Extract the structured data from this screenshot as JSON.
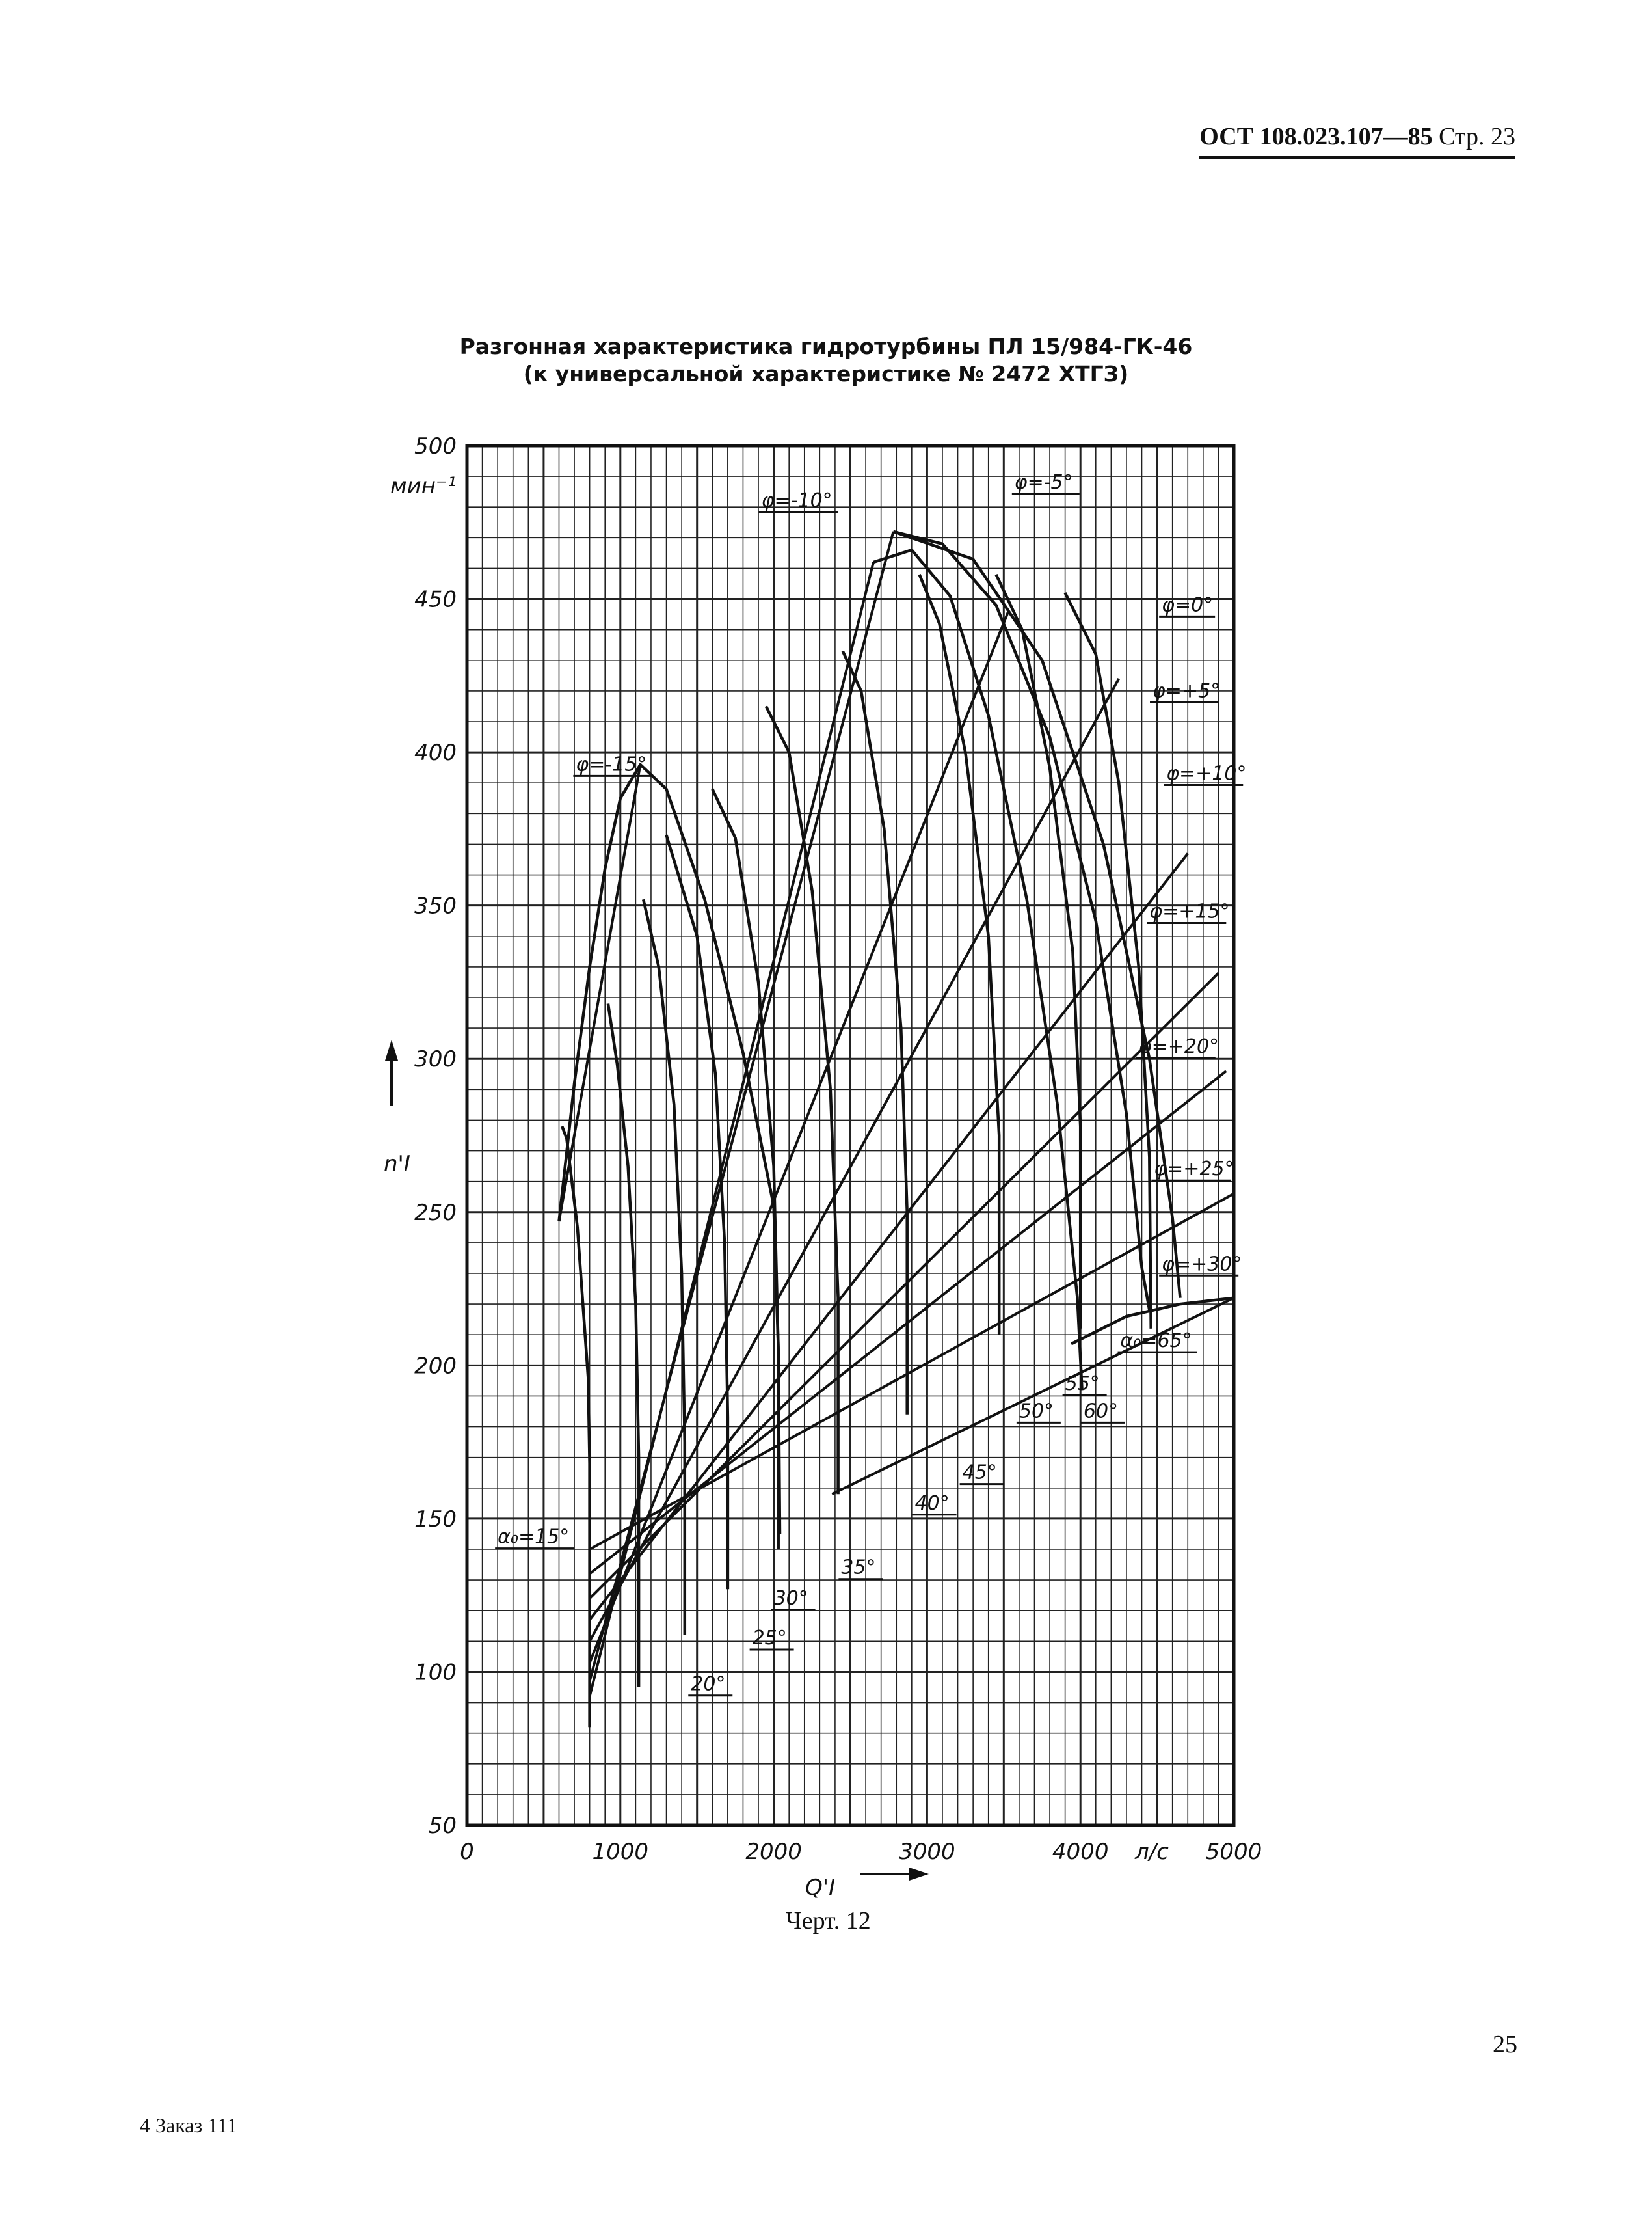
{
  "header": {
    "doc": "ОСТ 108.023.107—85",
    "page": "Стр. 23"
  },
  "title_line1": "Разгонная характеристика гидротурбины ПЛ 15/984-ГК-46",
  "title_line2": "(к универсальной характеристике № 2472 ХТГЗ)",
  "caption": "Черт. 12",
  "page_number": "25",
  "order_note": "4 Заказ 111",
  "chart_data": {
    "type": "line",
    "title": "Разгонная характеристика гидротурбины ПЛ 15/984-ГК-46",
    "subtitle": "(к универсальной характеристике № 2472 ХТГЗ)",
    "xlabel": "Q'I",
    "xunit": "л/с",
    "ylabel": "n'I",
    "yunit": "мин⁻¹",
    "xlim": [
      0,
      5000
    ],
    "ylim": [
      50,
      500
    ],
    "grid": true,
    "x_ticks": [
      {
        "v": 0,
        "label": "0"
      },
      {
        "v": 1000,
        "label": "1000"
      },
      {
        "v": 2000,
        "label": "2000"
      },
      {
        "v": 3000,
        "label": "3000"
      },
      {
        "v": 4000,
        "label": "4000"
      },
      {
        "v": 5000,
        "label": "5000"
      }
    ],
    "y_ticks": [
      {
        "v": 50,
        "label": "50"
      },
      {
        "v": 100,
        "label": "100"
      },
      {
        "v": 150,
        "label": "150"
      },
      {
        "v": 200,
        "label": "200"
      },
      {
        "v": 250,
        "label": "250"
      },
      {
        "v": 300,
        "label": "300"
      },
      {
        "v": 350,
        "label": "350"
      },
      {
        "v": 400,
        "label": "400"
      },
      {
        "v": 450,
        "label": "450"
      },
      {
        "v": 500,
        "label": "500"
      }
    ],
    "phi_series": [
      {
        "label": "φ=-15°",
        "points": [
          [
            600,
            247
          ],
          [
            700,
            292
          ],
          [
            800,
            330
          ],
          [
            900,
            362
          ],
          [
            1000,
            385
          ],
          [
            1130,
            396
          ],
          [
            1300,
            388
          ],
          [
            1550,
            352
          ],
          [
            1800,
            302
          ],
          [
            2000,
            252
          ],
          [
            2030,
            205
          ],
          [
            2040,
            145
          ]
        ]
      },
      {
        "label": "φ=-10°",
        "points": [
          [
            2650,
            462
          ],
          [
            2900,
            466
          ],
          [
            3150,
            451
          ],
          [
            3400,
            412
          ],
          [
            3650,
            352
          ],
          [
            3850,
            285
          ],
          [
            3980,
            222
          ],
          [
            4010,
            192
          ]
        ]
      },
      {
        "label": "φ=-5°",
        "points": [
          [
            2780,
            472
          ],
          [
            3100,
            468
          ],
          [
            3450,
            448
          ],
          [
            3800,
            405
          ],
          [
            4100,
            345
          ],
          [
            4300,
            282
          ],
          [
            4400,
            232
          ],
          [
            4450,
            218
          ]
        ]
      },
      {
        "label": "φ=0°",
        "points": [
          [
            2780,
            472
          ],
          [
            3300,
            463
          ],
          [
            3750,
            430
          ],
          [
            4150,
            370
          ],
          [
            4450,
            300
          ],
          [
            4600,
            248
          ],
          [
            4650,
            222
          ]
        ]
      }
    ],
    "alpha_series": [
      {
        "label": "α₀=15°",
        "points": [
          [
            800,
            82
          ],
          [
            800,
            168
          ],
          [
            790,
            196
          ],
          [
            720,
            245
          ],
          [
            650,
            274
          ],
          [
            620,
            278
          ]
        ]
      },
      {
        "label": "20°",
        "points": [
          [
            1120,
            95
          ],
          [
            1120,
            170
          ],
          [
            1100,
            220
          ],
          [
            1050,
            265
          ],
          [
            980,
            298
          ],
          [
            920,
            318
          ]
        ]
      },
      {
        "label": "25°",
        "points": [
          [
            1420,
            112
          ],
          [
            1420,
            175
          ],
          [
            1400,
            230
          ],
          [
            1350,
            285
          ],
          [
            1250,
            330
          ],
          [
            1150,
            352
          ]
        ]
      },
      {
        "label": "30°",
        "points": [
          [
            1700,
            127
          ],
          [
            1700,
            183
          ],
          [
            1680,
            240
          ],
          [
            1620,
            295
          ],
          [
            1500,
            340
          ],
          [
            1300,
            373
          ]
        ]
      },
      {
        "label": "35°",
        "points": [
          [
            2030,
            140
          ],
          [
            2030,
            205
          ],
          [
            2000,
            265
          ],
          [
            1900,
            325
          ],
          [
            1750,
            372
          ],
          [
            1600,
            388
          ]
        ]
      },
      {
        "label": "40°",
        "points": [
          [
            2420,
            158
          ],
          [
            2420,
            222
          ],
          [
            2370,
            290
          ],
          [
            2250,
            355
          ],
          [
            2100,
            400
          ],
          [
            1950,
            415
          ]
        ]
      },
      {
        "label": "45°",
        "points": [
          [
            2870,
            184
          ],
          [
            2870,
            250
          ],
          [
            2830,
            310
          ],
          [
            2720,
            375
          ],
          [
            2570,
            420
          ],
          [
            2450,
            433
          ]
        ]
      },
      {
        "label": "50°",
        "points": [
          [
            3470,
            210
          ],
          [
            3470,
            275
          ],
          [
            3400,
            340
          ],
          [
            3250,
            400
          ],
          [
            3080,
            442
          ],
          [
            2950,
            458
          ]
        ]
      },
      {
        "label": "55°",
        "points": [
          [
            4000,
            212
          ],
          [
            4000,
            278
          ],
          [
            3950,
            335
          ],
          [
            3800,
            395
          ],
          [
            3620,
            440
          ],
          [
            3450,
            458
          ]
        ]
      },
      {
        "label": "60°",
        "points": [
          [
            4460,
            212
          ],
          [
            4450,
            268
          ],
          [
            4380,
            330
          ],
          [
            4250,
            390
          ],
          [
            4100,
            432
          ],
          [
            3900,
            452
          ]
        ]
      },
      {
        "label": "α₀=65°",
        "points": [
          [
            3940,
            207
          ],
          [
            4300,
            216
          ],
          [
            4650,
            220
          ],
          [
            5000,
            222
          ]
        ]
      }
    ],
    "blade_lines": [
      {
        "label": "φ=-15°",
        "points": [
          [
            600,
            247
          ],
          [
            1130,
            396
          ]
        ]
      },
      {
        "label": "φ=-10°",
        "points": [
          [
            800,
            92
          ],
          [
            2650,
            462
          ]
        ]
      },
      {
        "label": "φ=-5°",
        "points": [
          [
            800,
            97
          ],
          [
            2780,
            472
          ]
        ]
      },
      {
        "label": "φ=0°",
        "points": [
          [
            800,
            103
          ],
          [
            3530,
            446
          ]
        ]
      },
      {
        "label": "φ=+5°",
        "points": [
          [
            800,
            110
          ],
          [
            4250,
            424
          ]
        ]
      },
      {
        "label": "φ=+10°",
        "points": [
          [
            800,
            117
          ],
          [
            4700,
            367
          ]
        ]
      },
      {
        "label": "φ=+15°",
        "points": [
          [
            800,
            124
          ],
          [
            4900,
            328
          ]
        ]
      },
      {
        "label": "φ=+20°",
        "points": [
          [
            800,
            132
          ],
          [
            4950,
            296
          ]
        ]
      },
      {
        "label": "φ=+25°",
        "points": [
          [
            800,
            140
          ],
          [
            5000,
            256
          ]
        ]
      },
      {
        "label": "φ=+30°",
        "points": [
          [
            2380,
            158
          ],
          [
            5000,
            222
          ]
        ]
      }
    ],
    "callouts": [
      {
        "label": "φ=-10°",
        "at": [
          1920,
          480
        ]
      },
      {
        "label": "φ=-5°",
        "at": [
          3570,
          486
        ]
      },
      {
        "label": "φ=0°",
        "at": [
          4530,
          446
        ]
      },
      {
        "label": "φ=+5°",
        "at": [
          4470,
          418
        ]
      },
      {
        "label": "φ=-15°",
        "at": [
          710,
          394
        ]
      },
      {
        "label": "φ=+10°",
        "at": [
          4560,
          391
        ]
      },
      {
        "label": "φ=+15°",
        "at": [
          4450,
          346
        ]
      },
      {
        "label": "φ=+20°",
        "at": [
          4380,
          302
        ]
      },
      {
        "label": "φ=+25°",
        "at": [
          4480,
          262
        ]
      },
      {
        "label": "φ=+30°",
        "at": [
          4530,
          231
        ]
      },
      {
        "label": "α₀=65°",
        "at": [
          4260,
          206
        ]
      },
      {
        "label": "55°",
        "at": [
          3900,
          192
        ]
      },
      {
        "label": "50°",
        "at": [
          3600,
          183
        ]
      },
      {
        "label": "60°",
        "at": [
          4020,
          183
        ]
      },
      {
        "label": "45°",
        "at": [
          3230,
          163
        ]
      },
      {
        "label": "40°",
        "at": [
          2920,
          153
        ]
      },
      {
        "label": "35°",
        "at": [
          2440,
          132
        ]
      },
      {
        "label": "30°",
        "at": [
          2000,
          122
        ]
      },
      {
        "label": "25°",
        "at": [
          1860,
          109
        ]
      },
      {
        "label": "20°",
        "at": [
          1460,
          94
        ]
      },
      {
        "label": "α₀=15°",
        "at": [
          200,
          142
        ]
      }
    ]
  }
}
